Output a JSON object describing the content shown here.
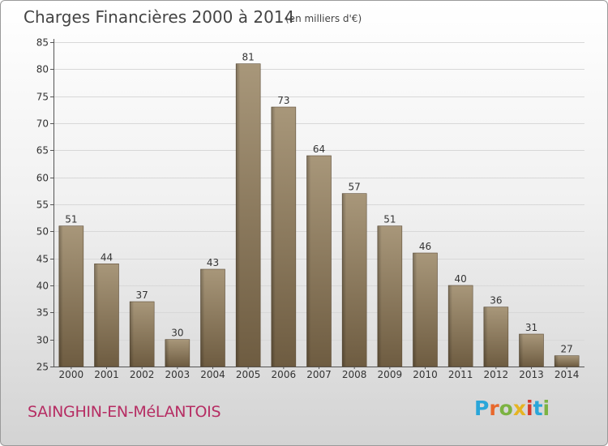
{
  "header": {
    "title": "Charges Financières 2000 à 2014",
    "unit": "(en milliers d'€)"
  },
  "footer": {
    "town": "SAINGHIN-EN-MéLANTOIS",
    "logo": "Proxiti",
    "logo_colors": [
      "#2aa6d9",
      "#e8682c",
      "#7cb342",
      "#e6b422",
      "#d33a2c",
      "#2aa6d9",
      "#7cb342"
    ]
  },
  "chart_data": {
    "type": "bar",
    "categories": [
      "2000",
      "2001",
      "2002",
      "2003",
      "2004",
      "2005",
      "2006",
      "2007",
      "2008",
      "2009",
      "2010",
      "2011",
      "2012",
      "2013",
      "2014"
    ],
    "values": [
      51,
      44,
      37,
      30,
      43,
      81,
      73,
      64,
      57,
      51,
      46,
      40,
      36,
      31,
      27
    ],
    "ylim": [
      25,
      85
    ],
    "yticks": [
      25,
      30,
      35,
      40,
      45,
      50,
      55,
      60,
      65,
      70,
      75,
      80,
      85
    ],
    "grid": true,
    "data_labels": true,
    "bar_color": "#8f7c5e"
  }
}
